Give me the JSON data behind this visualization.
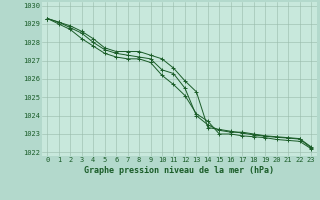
{
  "title": "Graphe pression niveau de la mer (hPa)",
  "bg_color": "#b3d9cc",
  "plot_bg_color": "#c8e8dc",
  "grid_color": "#99bbaa",
  "line_color": "#1a5c28",
  "x_min": -0.5,
  "x_max": 23.5,
  "y_min": 1021.8,
  "y_max": 1030.2,
  "series": [
    [
      1029.3,
      1029.1,
      1028.8,
      1028.5,
      1028.0,
      1027.6,
      1027.4,
      1027.3,
      1027.2,
      1027.1,
      1026.5,
      1026.3,
      1025.5,
      1024.0,
      1023.5,
      1023.2,
      1023.1,
      1023.1,
      1023.0,
      1022.9,
      1022.85,
      1022.8,
      1022.75,
      1022.3
    ],
    [
      1029.3,
      1029.0,
      1028.7,
      1028.2,
      1027.8,
      1027.4,
      1027.2,
      1027.1,
      1027.1,
      1026.9,
      1026.2,
      1025.7,
      1025.1,
      1024.1,
      1023.7,
      1023.0,
      1023.0,
      1022.9,
      1022.85,
      1022.8,
      1022.7,
      1022.65,
      1022.6,
      1022.2
    ],
    [
      1029.3,
      1029.1,
      1028.9,
      1028.6,
      1028.2,
      1027.7,
      1027.5,
      1027.5,
      1027.5,
      1027.3,
      1027.1,
      1026.6,
      1025.9,
      1025.3,
      1023.35,
      1023.25,
      1023.15,
      1023.05,
      1022.95,
      1022.88,
      1022.82,
      1022.78,
      1022.72,
      1022.25
    ]
  ],
  "yticks": [
    1022,
    1023,
    1024,
    1025,
    1026,
    1027,
    1028,
    1029,
    1030
  ],
  "xticks": [
    0,
    1,
    2,
    3,
    4,
    5,
    6,
    7,
    8,
    9,
    10,
    11,
    12,
    13,
    14,
    15,
    16,
    17,
    18,
    19,
    20,
    21,
    22,
    23
  ],
  "xlabel_fontsize": 6.0,
  "tick_fontsize": 5.0,
  "linewidth": 0.7,
  "markersize": 2.5
}
